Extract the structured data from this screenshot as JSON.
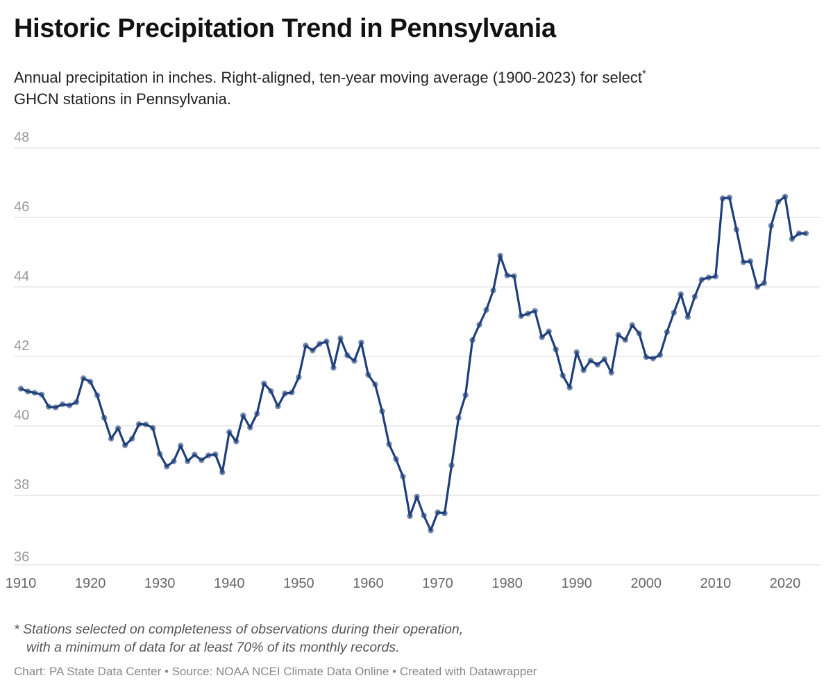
{
  "header": {
    "title": "Historic Precipitation Trend in Pennsylvania",
    "subtitle": "Annual precipitation in inches. Right-aligned, ten-year moving average (1900-2023) for select",
    "subtitle_marker": "*",
    "subtitle_line2": "GHCN stations in Pennsylvania."
  },
  "footer": {
    "note_line1": "* Stations selected on completeness of observations during their operation,",
    "note_line2": "with a minimum of data for at least 70% of its monthly records.",
    "credit": "Chart: PA State Data Center • Source: NOAA NCEI Climate Data Online • Created with Datawrapper"
  },
  "colors": {
    "line": "#1f3f7a",
    "grid": "#e0e0e0",
    "tick": "#999999",
    "xtick": "#666666"
  },
  "chart_data": {
    "type": "line",
    "title": "Historic Precipitation Trend in Pennsylvania",
    "xlim": [
      1909,
      2025
    ],
    "ylim": [
      36,
      48
    ],
    "yticks": [
      36,
      38,
      40,
      42,
      44,
      46,
      48
    ],
    "xticks": [
      1910,
      1920,
      1930,
      1940,
      1950,
      1960,
      1970,
      1980,
      1990,
      2000,
      2010,
      2020
    ],
    "grid": true,
    "legend": "none",
    "series": [
      {
        "x": [
          1910,
          1911,
          1912,
          1913,
          1914,
          1915,
          1916,
          1917,
          1918,
          1919,
          1920,
          1921,
          1922,
          1923,
          1924,
          1925,
          1926,
          1927,
          1928,
          1929,
          1930,
          1931,
          1932,
          1933,
          1934,
          1935,
          1936,
          1937,
          1938,
          1939,
          1940,
          1941,
          1942,
          1943,
          1944,
          1945,
          1946,
          1947,
          1948,
          1949,
          1950,
          1951,
          1952,
          1953,
          1954,
          1955,
          1956,
          1957,
          1958,
          1959,
          1960,
          1961,
          1962,
          1963,
          1964,
          1965,
          1966,
          1967,
          1968,
          1969,
          1970,
          1971,
          1972,
          1973,
          1974,
          1975,
          1976,
          1977,
          1978,
          1979,
          1980,
          1981,
          1982,
          1983,
          1984,
          1985,
          1986,
          1987,
          1988,
          1989,
          1990,
          1991,
          1992,
          1993,
          1994,
          1995,
          1996,
          1997,
          1998,
          1999,
          2000,
          2001,
          2002,
          2003,
          2004,
          2005,
          2006,
          2007,
          2008,
          2009,
          2010,
          2011,
          2012,
          2013,
          2014,
          2015,
          2016,
          2017,
          2018,
          2019,
          2020,
          2021,
          2022,
          2023
        ],
        "values": [
          41.07,
          40.99,
          40.95,
          40.9,
          40.55,
          40.53,
          40.62,
          40.59,
          40.68,
          41.37,
          41.27,
          40.88,
          40.23,
          39.63,
          39.93,
          39.44,
          39.63,
          40.05,
          40.04,
          39.94,
          39.19,
          38.83,
          38.98,
          39.43,
          38.98,
          39.17,
          39.01,
          39.15,
          39.18,
          38.66,
          39.82,
          39.55,
          40.3,
          39.95,
          40.35,
          41.22,
          41.0,
          40.56,
          40.93,
          40.96,
          41.4,
          42.31,
          42.17,
          42.36,
          42.43,
          41.67,
          42.52,
          42.03,
          41.87,
          42.4,
          41.47,
          41.19,
          40.42,
          39.47,
          39.04,
          38.54,
          37.4,
          37.96,
          37.42,
          36.99,
          37.51,
          37.48,
          38.86,
          40.23,
          40.88,
          42.47,
          42.91,
          43.34,
          43.9,
          44.9,
          44.33,
          44.31,
          43.16,
          43.23,
          43.31,
          42.55,
          42.72,
          42.2,
          41.45,
          41.1,
          42.12,
          41.6,
          41.88,
          41.76,
          41.92,
          41.53,
          42.62,
          42.47,
          42.9,
          42.66,
          41.98,
          41.94,
          42.04,
          42.7,
          43.26,
          43.79,
          43.13,
          43.72,
          44.21,
          44.27,
          44.3,
          46.55,
          46.57,
          45.65,
          44.71,
          44.74,
          44.0,
          44.11,
          45.76,
          46.45,
          46.6,
          45.38,
          45.54,
          45.54
        ]
      }
    ]
  }
}
